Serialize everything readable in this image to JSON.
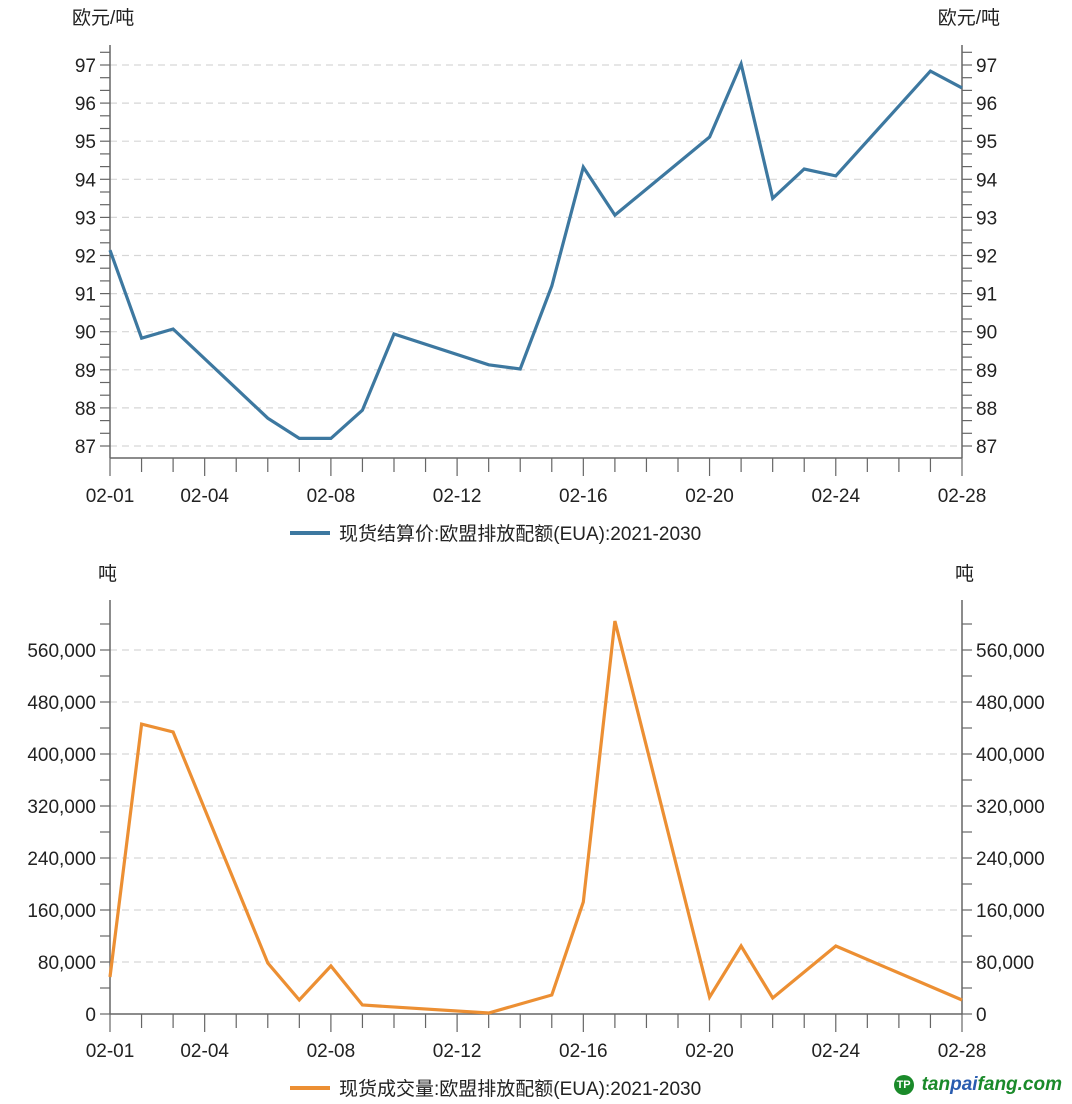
{
  "chart_data": [
    {
      "type": "line",
      "title": "",
      "ylabel_left": "欧元/吨",
      "ylabel_right": "欧元/吨",
      "color": "#3d78a0",
      "ylim": [
        86.7,
        97.5
      ],
      "yticks": [
        87,
        88,
        89,
        90,
        91,
        92,
        93,
        94,
        95,
        96,
        97
      ],
      "xticks": [
        "02-01",
        "02-04",
        "02-08",
        "02-12",
        "02-16",
        "02-20",
        "02-24",
        "02-28"
      ],
      "grid": true,
      "legend": "bottom",
      "series": [
        {
          "name": "现货结算价:欧盟排放配额(EUA):2021-2030",
          "x": [
            "02-01",
            "02-02",
            "02-03",
            "02-06",
            "02-07",
            "02-08",
            "02-09",
            "02-10",
            "02-13",
            "02-14",
            "02-15",
            "02-16",
            "02-17",
            "02-20",
            "02-21",
            "02-22",
            "02-23",
            "02-24",
            "02-27",
            "02-28"
          ],
          "values": [
            92.14,
            89.83,
            90.07,
            87.73,
            87.2,
            87.2,
            87.94,
            89.94,
            89.13,
            89.02,
            91.2,
            94.32,
            93.06,
            95.11,
            97.03,
            93.5,
            94.27,
            94.09,
            96.84,
            96.4
          ]
        }
      ]
    },
    {
      "type": "line",
      "title": "",
      "ylabel_left": "吨",
      "ylabel_right": "吨",
      "color": "#ec8f33",
      "ylim": [
        0,
        630000
      ],
      "yticks": [
        0,
        80000,
        160000,
        240000,
        320000,
        400000,
        480000,
        560000
      ],
      "ytick_labels": [
        "0",
        "80,000",
        "160,000",
        "240,000",
        "320,000",
        "400,000",
        "480,000",
        "560,000"
      ],
      "xticks": [
        "02-01",
        "02-04",
        "02-08",
        "02-12",
        "02-16",
        "02-20",
        "02-24",
        "02-28"
      ],
      "grid": true,
      "legend": "bottom",
      "series": [
        {
          "name": "现货成交量:欧盟排放配额(EUA):2021-2030",
          "x": [
            "02-01",
            "02-02",
            "02-03",
            "02-06",
            "02-07",
            "02-08",
            "02-09",
            "02-13",
            "02-15",
            "02-16",
            "02-17",
            "02-20",
            "02-21",
            "02-22",
            "02-24",
            "02-28"
          ],
          "values": [
            56900,
            446000,
            433800,
            78500,
            21500,
            73800,
            13800,
            1500,
            29200,
            172300,
            604600,
            26000,
            104600,
            24600,
            104600,
            21500
          ]
        }
      ]
    }
  ],
  "watermark": {
    "part1": "tan",
    "part2": "pai",
    "part3": "fang.com",
    "logo": "TP"
  }
}
